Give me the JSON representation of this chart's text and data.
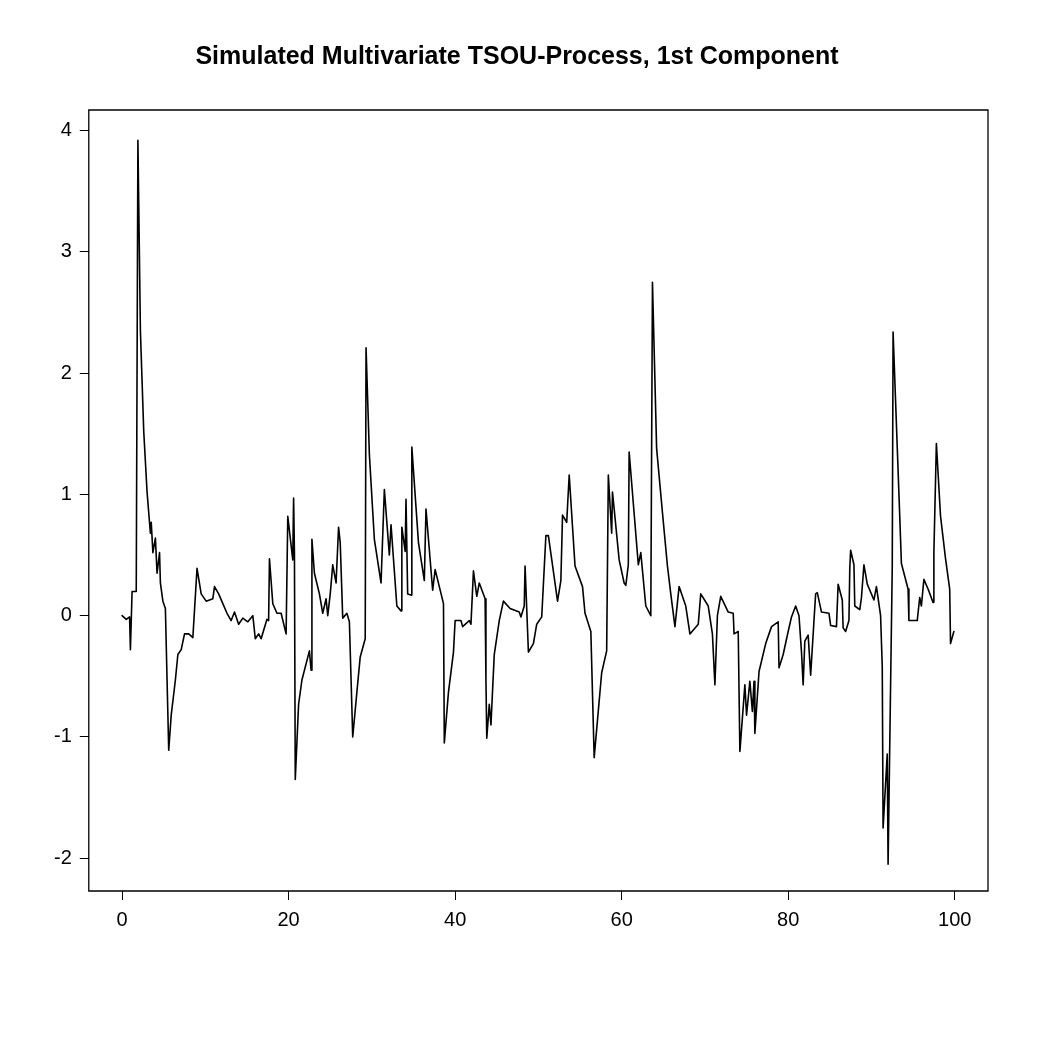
{
  "chart_data": {
    "type": "line",
    "title": "Simulated Multivariate TSOU-Process, 1st Component",
    "xlim": [
      -4,
      104
    ],
    "xticks": [
      0,
      20,
      40,
      60,
      80,
      100
    ],
    "ylim": [
      -2.27,
      4.17
    ],
    "yticks": [
      -2,
      -1,
      0,
      1,
      2,
      3,
      4
    ],
    "grid": false,
    "legend": false,
    "marker": "none",
    "line_style": "solid",
    "series": [
      {
        "color": "#000000",
        "x": [
          0,
          0.5,
          0.9,
          1.0,
          1.2,
          1.7,
          1.9,
          2.2,
          2.6,
          3.0,
          3.4,
          3.5,
          3.7,
          4.0,
          4.2,
          4.5,
          4.6,
          4.9,
          5.2,
          5.6,
          5.9,
          6.4,
          6.7,
          7.1,
          7.5,
          8.0,
          8.5,
          9.0,
          9.5,
          10.1,
          10.9,
          11.1,
          11.6,
          12.1,
          12.6,
          13.1,
          13.5,
          14.0,
          14.5,
          15.1,
          15.7,
          16.0,
          16.4,
          16.7,
          17.4,
          17.6,
          17.7,
          18.1,
          18.6,
          19.1,
          19.7,
          19.9,
          20.5,
          20.6,
          20.7,
          20.8,
          21.2,
          21.6,
          22.5,
          22.7,
          22.8,
          23.1,
          23.7,
          24.1,
          24.5,
          24.7,
          25.0,
          25.3,
          25.7,
          26.0,
          26.2,
          26.5,
          27.0,
          27.3,
          27.7,
          28.2,
          28.6,
          29.2,
          29.3,
          29.7,
          30.3,
          31.1,
          31.5,
          32.1,
          32.3,
          33.0,
          33.5,
          33.6,
          34.0,
          34.1,
          34.3,
          34.7,
          34.8,
          35.6,
          36.3,
          36.5,
          37.3,
          37.6,
          38.6,
          38.7,
          39.2,
          39.8,
          40.0,
          40.7,
          40.9,
          41.7,
          41.9,
          42.2,
          42.6,
          42.9,
          43.6,
          43.7,
          43.8,
          44.1,
          44.3,
          44.7,
          45.3,
          45.8,
          46.6,
          47.7,
          47.9,
          48.3,
          48.4,
          48.8,
          49.4,
          49.8,
          50.4,
          50.9,
          51.2,
          52.3,
          52.7,
          52.9,
          53.4,
          53.7,
          54.4,
          55.3,
          55.6,
          56.3,
          56.7,
          57.6,
          58.2,
          58.4,
          58.8,
          58.9,
          59.7,
          60.3,
          60.5,
          60.8,
          60.9,
          62.0,
          62.3,
          62.9,
          63.5,
          63.7,
          64.2,
          64.9,
          65.5,
          65.9,
          66.4,
          66.9,
          67.7,
          68.2,
          69.2,
          69.5,
          70.4,
          70.9,
          71.2,
          71.5,
          71.9,
          72.8,
          73.4,
          73.5,
          74.0,
          74.2,
          74.8,
          75.0,
          75.4,
          75.7,
          75.9,
          76.0,
          76.5,
          77.3,
          78.0,
          78.8,
          78.9,
          79.4,
          80.0,
          80.4,
          80.9,
          81.3,
          81.6,
          81.8,
          82.0,
          82.4,
          82.7,
          83.1,
          83.3,
          83.5,
          84.0,
          84.9,
          85.1,
          85.8,
          86.0,
          86.5,
          86.6,
          86.9,
          87.3,
          87.4,
          87.5,
          87.9,
          88.0,
          88.6,
          88.8,
          89.1,
          89.5,
          90.3,
          90.6,
          91.1,
          91.3,
          91.4,
          91.9,
          92.0,
          92.5,
          92.6,
          93.4,
          93.6,
          94.4,
          94.5,
          95.5,
          95.8,
          96.0,
          96.3,
          96.8,
          97.4,
          97.5,
          97.8,
          98.3,
          98.9,
          99.4,
          99.5,
          99.9
        ],
        "values": [
          0,
          -0.03,
          -0.01,
          -0.28,
          0.2,
          0.2,
          3.92,
          2.35,
          1.52,
          1.02,
          0.68,
          0.77,
          0.52,
          0.64,
          0.35,
          0.52,
          0.27,
          0.12,
          0.06,
          -1.11,
          -0.82,
          -0.53,
          -0.32,
          -0.28,
          -0.15,
          -0.15,
          -0.18,
          0.39,
          0.18,
          0.12,
          0.14,
          0.24,
          0.18,
          0.1,
          0.02,
          -0.04,
          0.03,
          -0.07,
          -0.02,
          -0.05,
          0,
          -0.19,
          -0.15,
          -0.19,
          -0.03,
          -0.04,
          0.47,
          0.1,
          0.02,
          0.02,
          -0.15,
          0.82,
          0.46,
          0.97,
          0.52,
          -1.35,
          -0.73,
          -0.53,
          -0.29,
          -0.45,
          0.63,
          0.35,
          0.18,
          0.02,
          0.14,
          0,
          0.18,
          0.42,
          0.27,
          0.73,
          0.6,
          -0.02,
          0.02,
          -0.05,
          -1.0,
          -0.63,
          -0.34,
          -0.19,
          2.21,
          1.33,
          0.63,
          0.27,
          1.04,
          0.5,
          0.75,
          0.08,
          0.04,
          0.73,
          0.53,
          0.96,
          0.18,
          0.17,
          1.39,
          0.6,
          0.29,
          0.88,
          0.21,
          0.38,
          0.1,
          -1.05,
          -0.63,
          -0.3,
          -0.04,
          -0.04,
          -0.09,
          -0.04,
          -0.07,
          0.37,
          0.16,
          0.27,
          0.14,
          -0.53,
          -1.01,
          -0.73,
          -0.9,
          -0.32,
          -0.04,
          0.12,
          0.06,
          0.03,
          -0.01,
          0.08,
          0.41,
          -0.3,
          -0.23,
          -0.07,
          -0.01,
          0.66,
          0.66,
          0.12,
          0.29,
          0.83,
          0.77,
          1.16,
          0.41,
          0.24,
          0.02,
          -0.13,
          -1.17,
          -0.47,
          -0.29,
          1.16,
          0.68,
          1.02,
          0.46,
          0.27,
          0.25,
          0.42,
          1.35,
          0.42,
          0.52,
          0.08,
          0,
          2.75,
          1.38,
          0.85,
          0.41,
          0.18,
          -0.09,
          0.24,
          0.08,
          -0.15,
          -0.07,
          0.18,
          0.08,
          -0.15,
          -0.57,
          0,
          0.16,
          0.03,
          0.02,
          -0.15,
          -0.13,
          -1.12,
          -0.57,
          -0.82,
          -0.54,
          -0.79,
          -0.54,
          -0.97,
          -0.46,
          -0.23,
          -0.09,
          -0.05,
          -0.43,
          -0.32,
          -0.13,
          -0.01,
          0.08,
          0,
          -0.3,
          -0.57,
          -0.21,
          -0.16,
          -0.49,
          -0.04,
          0.18,
          0.19,
          0.03,
          0.02,
          -0.08,
          -0.09,
          0.26,
          0.13,
          -0.1,
          -0.13,
          -0.04,
          0.39,
          0.54,
          0.42,
          0.08,
          0.05,
          0.15,
          0.42,
          0.26,
          0.13,
          0.24,
          0,
          -0.42,
          -1.75,
          -1.14,
          -2.05,
          0.4,
          2.34,
          0.82,
          0.43,
          0.22,
          -0.04,
          -0.04,
          0.15,
          0.08,
          0.3,
          0.22,
          0.11,
          0.52,
          1.42,
          0.82,
          0.47,
          0.22,
          -0.23,
          -0.13
        ]
      }
    ]
  }
}
